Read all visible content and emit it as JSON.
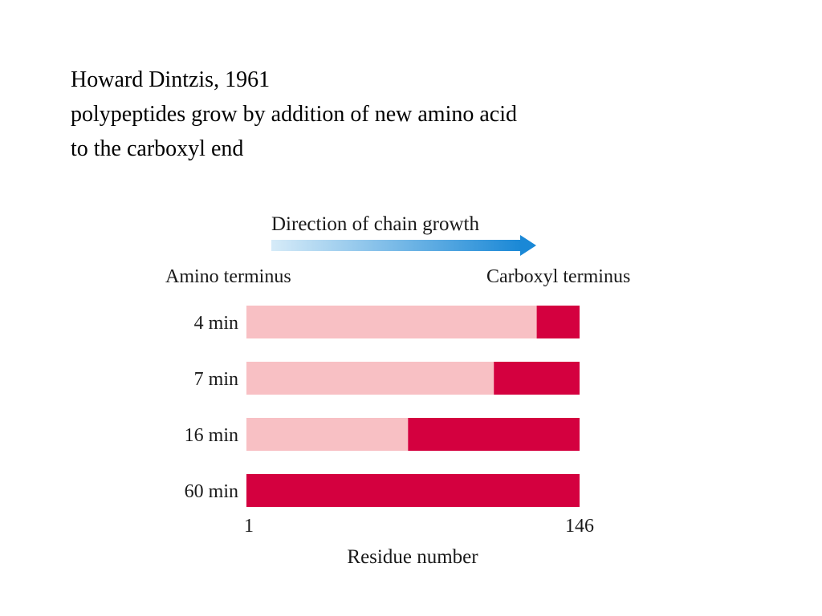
{
  "slide": {
    "lines": [
      "Howard Dintzis, 1961",
      "polypeptides grow by addition of new amino acid",
      "to the carboxyl end"
    ]
  },
  "chart_data": {
    "type": "bar",
    "orientation": "horizontal",
    "stacked": true,
    "categories": [
      "4 min",
      "7 min",
      "16 min",
      "60 min"
    ],
    "series": [
      {
        "values": [
          88,
          75,
          49,
          0
        ],
        "color": "#f8c0c4"
      },
      {
        "values": [
          13,
          26,
          52,
          101
        ],
        "color": "#d4003f"
      }
    ],
    "arrow_label": "Direction of chain growth",
    "left_end_label": "Amino terminus",
    "right_end_label": "Carboxyl terminus",
    "xlabel": "Residue number",
    "x_ticks": [
      "1",
      "146"
    ],
    "arrow_colors": [
      "#d6ebf8",
      "#1a88d6"
    ]
  }
}
